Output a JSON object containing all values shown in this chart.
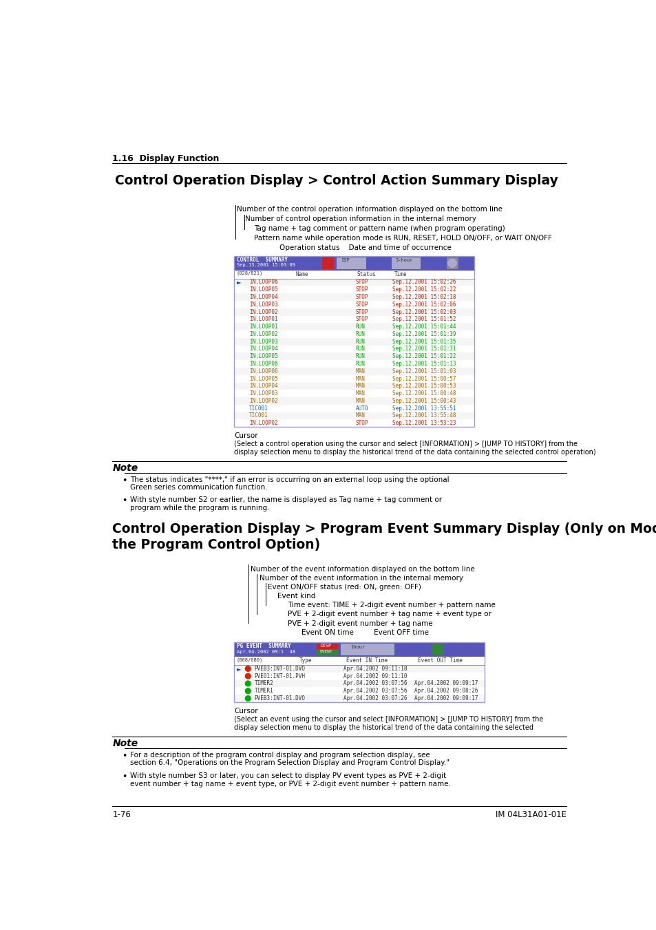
{
  "page_width": 9.54,
  "page_height": 13.51,
  "bg_color": "#ffffff",
  "section_header": "1.16  Display Function",
  "title1": "Control Operation Display > Control Action Summary Display",
  "title2_line1": "Control Operation Display > Program Event Summary Display (Only on Models with",
  "title2_line2": "the Program Control Option)",
  "ann1_lines": [
    [
      "Number of the control operation information displayed on the bottom line",
      0
    ],
    [
      "Number of control operation information in the internal memory",
      1
    ],
    [
      "Tag name + tag comment or pattern name (when program operating)",
      2
    ],
    [
      "Pattern name while operation mode is RUN, RESET, HOLD ON/OFF, or WAIT ON/OFF",
      2
    ],
    [
      "Operation status    Date and time of occurrence",
      4
    ]
  ],
  "screen1_rows": [
    [
      "IN.LOOP06",
      "STOP",
      "Sep.12.2001 15:02:26"
    ],
    [
      "IN.LOOP05",
      "STOP",
      "Sep.12.2001 15:02:22"
    ],
    [
      "IN.LOOP04",
      "STOP",
      "Sep.12.2001 15:02:18"
    ],
    [
      "IN.LOOP03",
      "STOP",
      "Sep.12.2001 15:02:06"
    ],
    [
      "IN.LOOP02",
      "STOP",
      "Sep.12.2001 15:02:03"
    ],
    [
      "IN.LOOP01",
      "STOP",
      "Sep.12.2001 15:01:52"
    ],
    [
      "IN.LOOP01",
      "RUN",
      "Sep.12.2001 15:01:44"
    ],
    [
      "IN.LOOP02",
      "RUN",
      "Sep.12.2001 15:01:39"
    ],
    [
      "IN.LOOP03",
      "RUN",
      "Sep.12.2001 15:01:35"
    ],
    [
      "IN.LOOP04",
      "RUN",
      "Sep.12.2001 15:01:31"
    ],
    [
      "IN.LOOP05",
      "RUN",
      "Sep.12.2001 15:01:22"
    ],
    [
      "IN.LOOP06",
      "RUN",
      "Sep.12.2001 15:01:13"
    ],
    [
      "IN.LOOP06",
      "MAN",
      "Sep.12.2001 15:01:03"
    ],
    [
      "IN.LOOP05",
      "MAN",
      "Sep.12.2001 15:00:57"
    ],
    [
      "IN.LOOP04",
      "MAN",
      "Sep.12.2001 15:00:53"
    ],
    [
      "IN.LOOP03",
      "MAN",
      "Sep.12.2001 15:00:48"
    ],
    [
      "IN.LOOP02",
      "MAN",
      "Sep.12.2001 15:00:43"
    ],
    [
      "TIC001",
      "AUTO",
      "Sep.12.2001 13:55:51"
    ],
    [
      "TIC001",
      "MAN",
      "Sep.12.2001 13:55:48"
    ],
    [
      "IN.LOOP02",
      "STOP",
      "Sep.12.2001 13:53:23"
    ]
  ],
  "cursor_text1": "Cursor",
  "cursor_desc1": "(Select a control operation using the cursor and select [INFORMATION] > [JUMP TO HISTORY] from the\ndisplay selection menu to display the historical trend of the data containing the selected control operation)",
  "note1_bullets": [
    "The status indicates \"****,\" if an error is occurring on an external loop using the optional\nGreen series communication function.",
    "With style number S2 or earlier, the name is displayed as Tag name + tag comment or\nprogram while the program is running."
  ],
  "ann2_lines": [
    [
      "Number of the event information displayed on the bottom line",
      0
    ],
    [
      "Number of the event information in the internal memory",
      1
    ],
    [
      "Event ON/OFF status (red: ON, green: OFF)",
      2
    ],
    [
      "Event kind",
      3
    ],
    [
      "Time event: TIME + 2-digit event number + pattern name",
      4
    ],
    [
      "PVE + 2-digit event number + tag name + event type or",
      4
    ],
    [
      "PVE + 2-digit event number + tag name",
      4
    ],
    [
      "Event ON time         Event OFF time",
      5
    ]
  ],
  "screen2_rows": [
    [
      "PVEB3:INT-01.DVO",
      "Apr.04.2002 09:11:18",
      "",
      "red"
    ],
    [
      "PVE01:INT-01.PVH",
      "Apr.04.2002 09:11:10",
      "",
      "red"
    ],
    [
      "TIMER2",
      "Apr.04.2002 03:07:56",
      "Apr.04.2002 09:09:17",
      "green"
    ],
    [
      "TIMER1",
      "Apr.04.2002 03:07:56",
      "Apr.04.2002 09:08:26",
      "green"
    ],
    [
      "PVEB3:INT-01.DVO",
      "Apr.04.2002 03:07:26",
      "Apr.04.2002 09:09:17",
      "green"
    ]
  ],
  "cursor_text2": "Cursor",
  "cursor_desc2": "(Select an event using the cursor and select [INFORMATION] > [JUMP TO HISTORY] from the\ndisplay selection menu to display the historical trend of the data containing the selected",
  "note2_bullets": [
    "For a description of the program control display and program selection display, see\nsection 6.4, \"Operations on the Program Selection Display and Program Control Display.\"",
    "With style number S3 or later, you can select to display PV event types as PVE + 2-digit\nevent number + tag name + event type, or PVE + 2-digit event number + pattern name."
  ],
  "footer_left": "1-76",
  "footer_right": "IM 04L31A01-01E"
}
